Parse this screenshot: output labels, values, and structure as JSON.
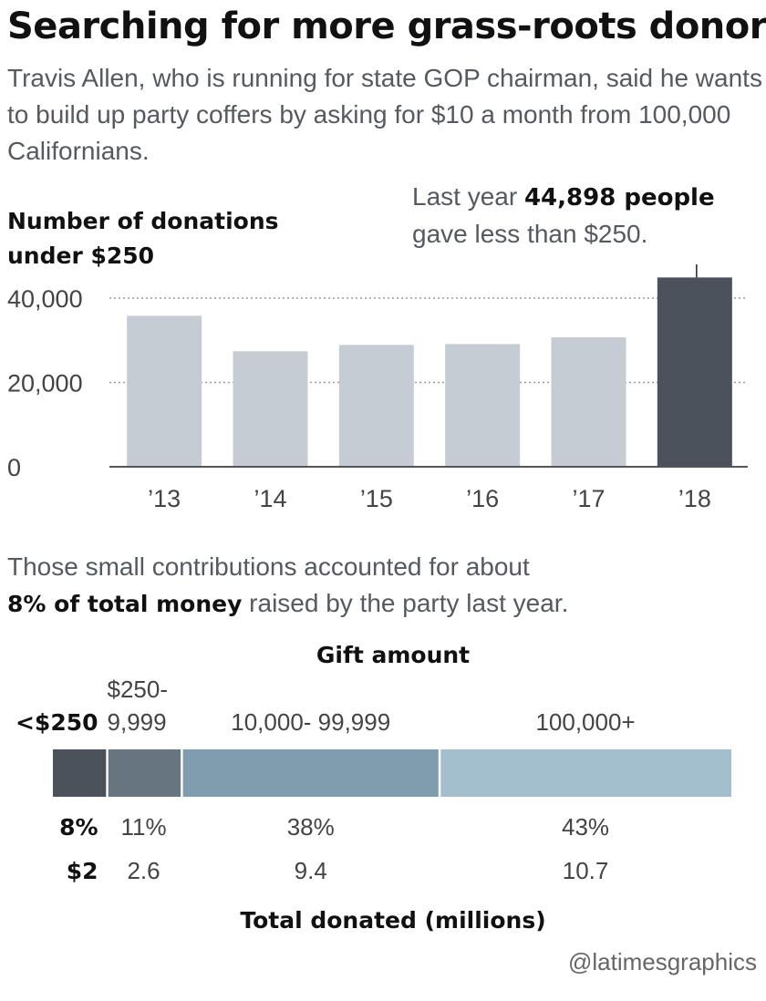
{
  "headline": "Searching for more grass-roots donors",
  "dek": "Travis Allen, who is running for state GOP chairman, said he wants to build up party coffers by asking for $10 a month from 100,000 Californians.",
  "annotation": {
    "prefix": "Last year ",
    "bold": "44,898 people",
    "rest": "gave less than $250."
  },
  "note": {
    "line1": "Those small contributions accounted for about",
    "bold": "8% of total money",
    "rest": " raised by the party last year."
  },
  "credit": "@latimesgraphics",
  "chart_data": [
    {
      "type": "bar",
      "title": "Number of donations under $250",
      "ylabel_lines": [
        "Number of donations",
        "under $250"
      ],
      "categories": [
        "’13",
        "’14",
        "’15",
        "’16",
        "’17",
        "’18"
      ],
      "values": [
        35800,
        27400,
        28900,
        29100,
        30700,
        44898
      ],
      "yticks": [
        0,
        20000,
        40000
      ],
      "ytick_labels": [
        "0",
        "20,000",
        "40,000"
      ],
      "ylim": [
        0,
        48000
      ],
      "grid": true,
      "colors": {
        "bar": "#c5ccd3",
        "highlight": "#4b525b",
        "grid": "#9a9a9a",
        "axis": "#555555"
      },
      "highlight_index": 5
    },
    {
      "type": "bar",
      "orientation": "stacked-horizontal",
      "title": "Gift amount",
      "xlabel": "Total donated (millions)",
      "categories": [
        {
          "lines": [
            "<$250"
          ],
          "bold": true
        },
        {
          "lines": [
            "$250-",
            "9,999"
          ],
          "bold": false
        },
        {
          "lines": [
            "10,000- 99,999"
          ],
          "bold": false
        },
        {
          "lines": [
            "100,000+"
          ],
          "bold": false
        }
      ],
      "shares": [
        8,
        11,
        38,
        43
      ],
      "share_labels": [
        "8%",
        "11%",
        "38%",
        "43%"
      ],
      "amounts": [
        2,
        2.6,
        9.4,
        10.7
      ],
      "amount_labels": [
        "$2",
        "2.6",
        "9.4",
        "10.7"
      ],
      "colors": [
        "#4b525b",
        "#66757f",
        "#809daf",
        "#a3bfce"
      ]
    }
  ]
}
